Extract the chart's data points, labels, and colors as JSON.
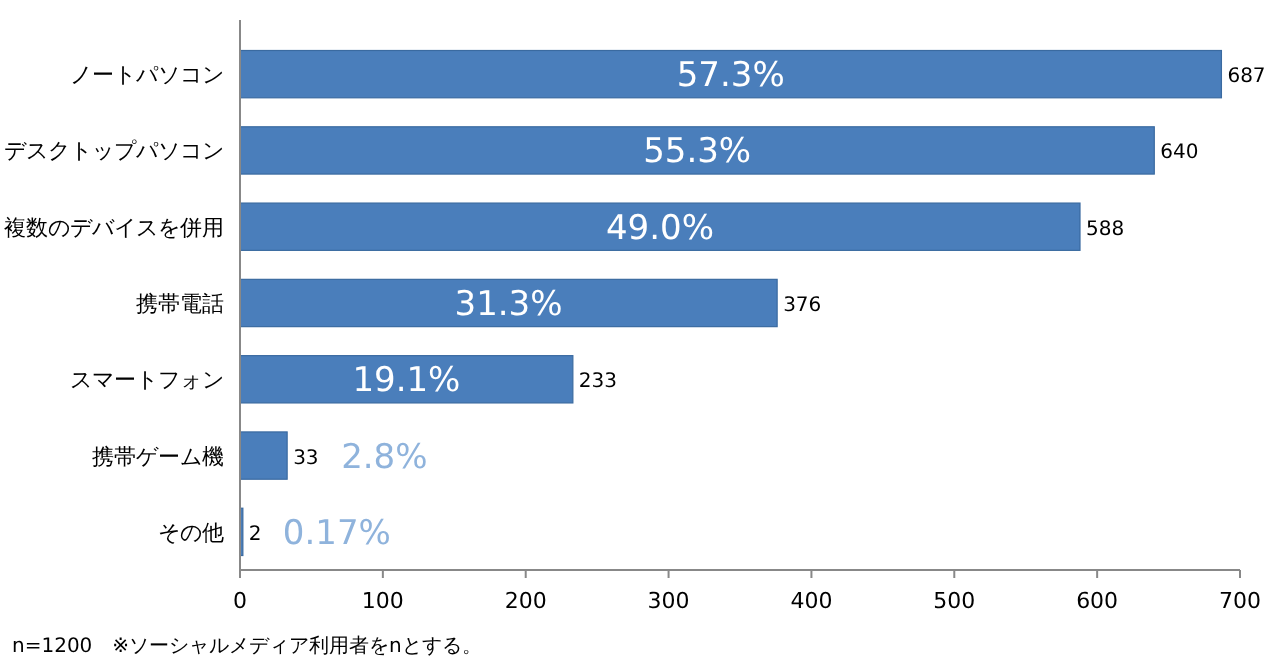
{
  "chart_data": {
    "type": "bar",
    "orientation": "horizontal",
    "categories": [
      "ノートパソコン",
      "デスクトップパソコン",
      "複数のデバイスを併用",
      "携帯電話",
      "スマートフォン",
      "携帯ゲーム機",
      "その他"
    ],
    "values": [
      687,
      640,
      588,
      376,
      233,
      33,
      2
    ],
    "color": "#4a7ebb",
    "data_labels": true,
    "xlim": [
      0,
      700
    ],
    "xticks": [
      0,
      100,
      200,
      300,
      400,
      500,
      600,
      700
    ],
    "grid": false,
    "annotations": [
      "57.3%",
      "55.3%",
      "49.0%",
      "31.3%",
      "19.1%",
      "2.8%",
      "0.17%",
      "n=1200　※ソーシャルメディア利用者をnとする。"
    ]
  }
}
